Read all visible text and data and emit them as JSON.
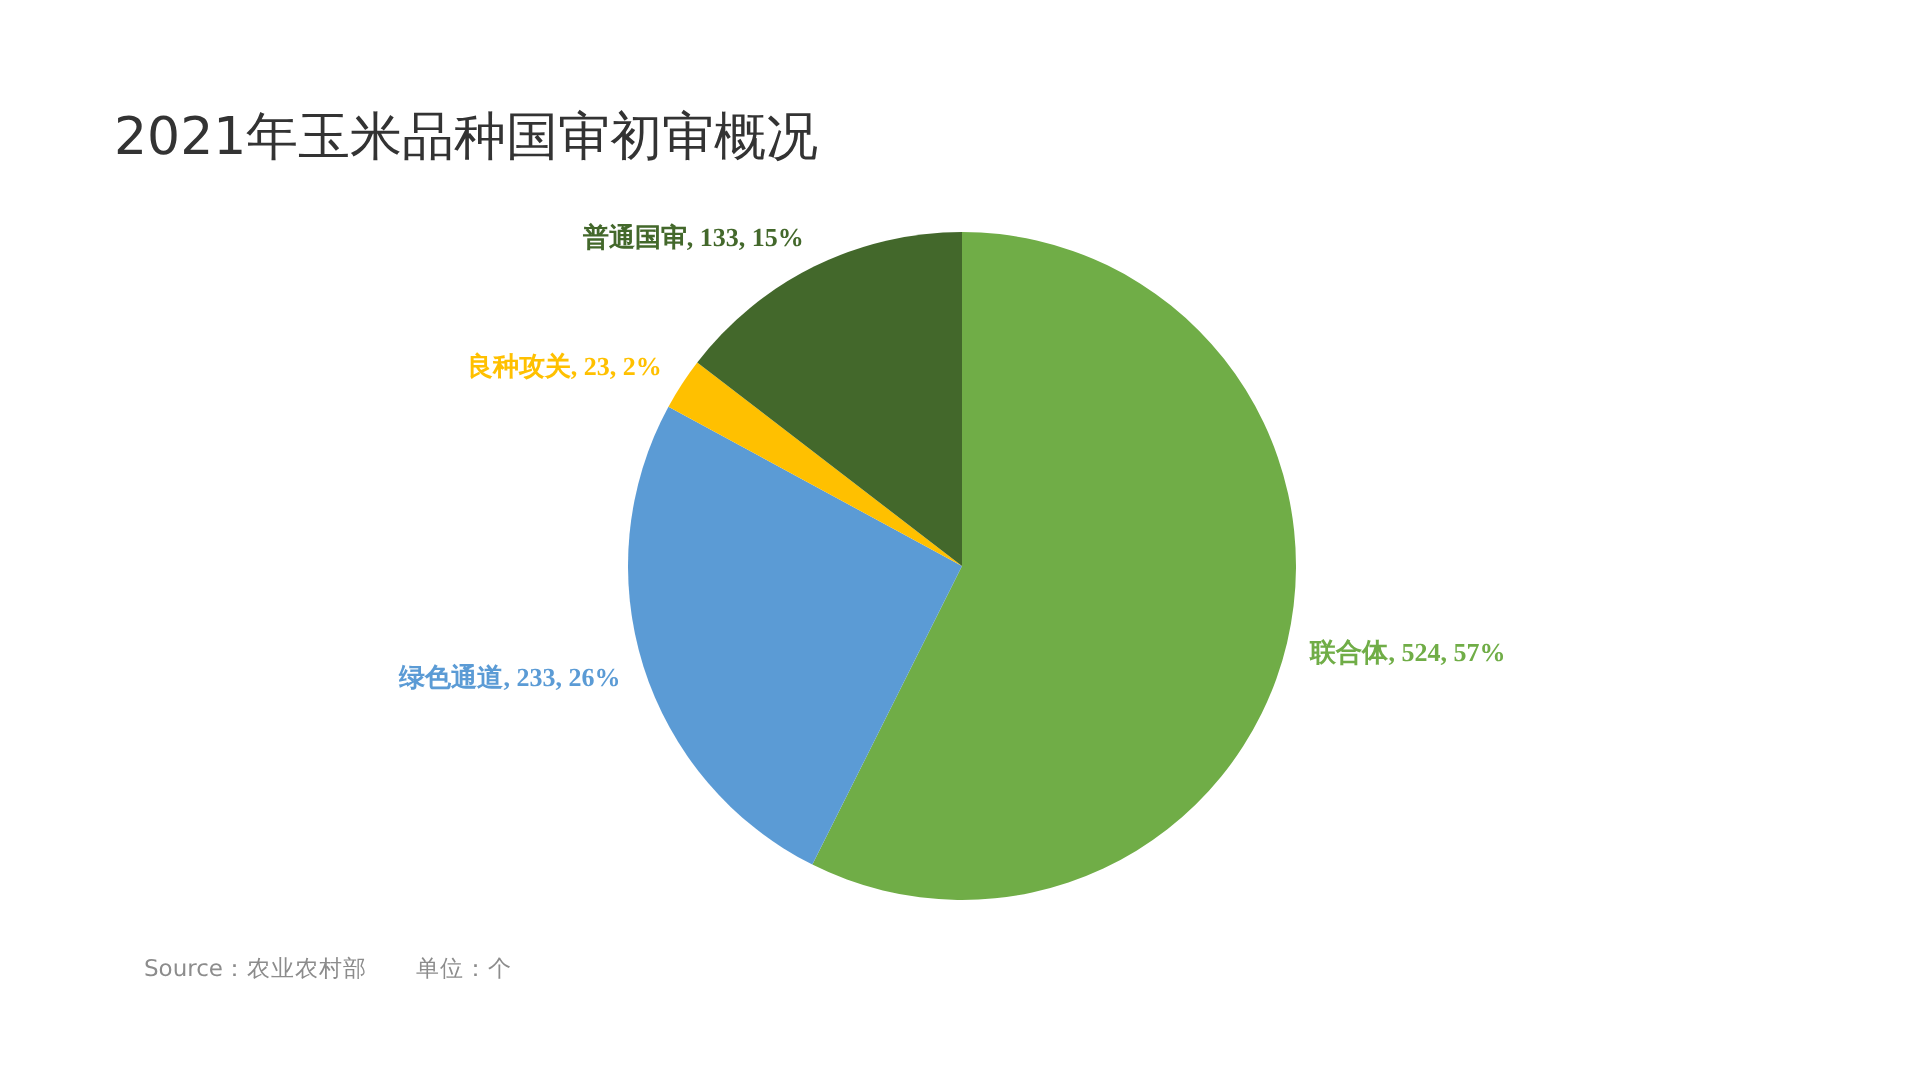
{
  "chart_data": {
    "type": "pie",
    "title": "2021年玉米品种国审初审概况",
    "categories": [
      "联合体",
      "绿色通道",
      "良种攻关",
      "普通国审"
    ],
    "values": [
      524,
      233,
      23,
      133
    ],
    "colors": [
      "#70ad47",
      "#5b9bd5",
      "#ffc000",
      "#43682b"
    ],
    "value_labels": [
      "524, 57%",
      "233, 26%",
      "23, 2%",
      "133, 15%"
    ],
    "annotations": [
      "Source：农业农村部",
      "单位：个"
    ]
  }
}
